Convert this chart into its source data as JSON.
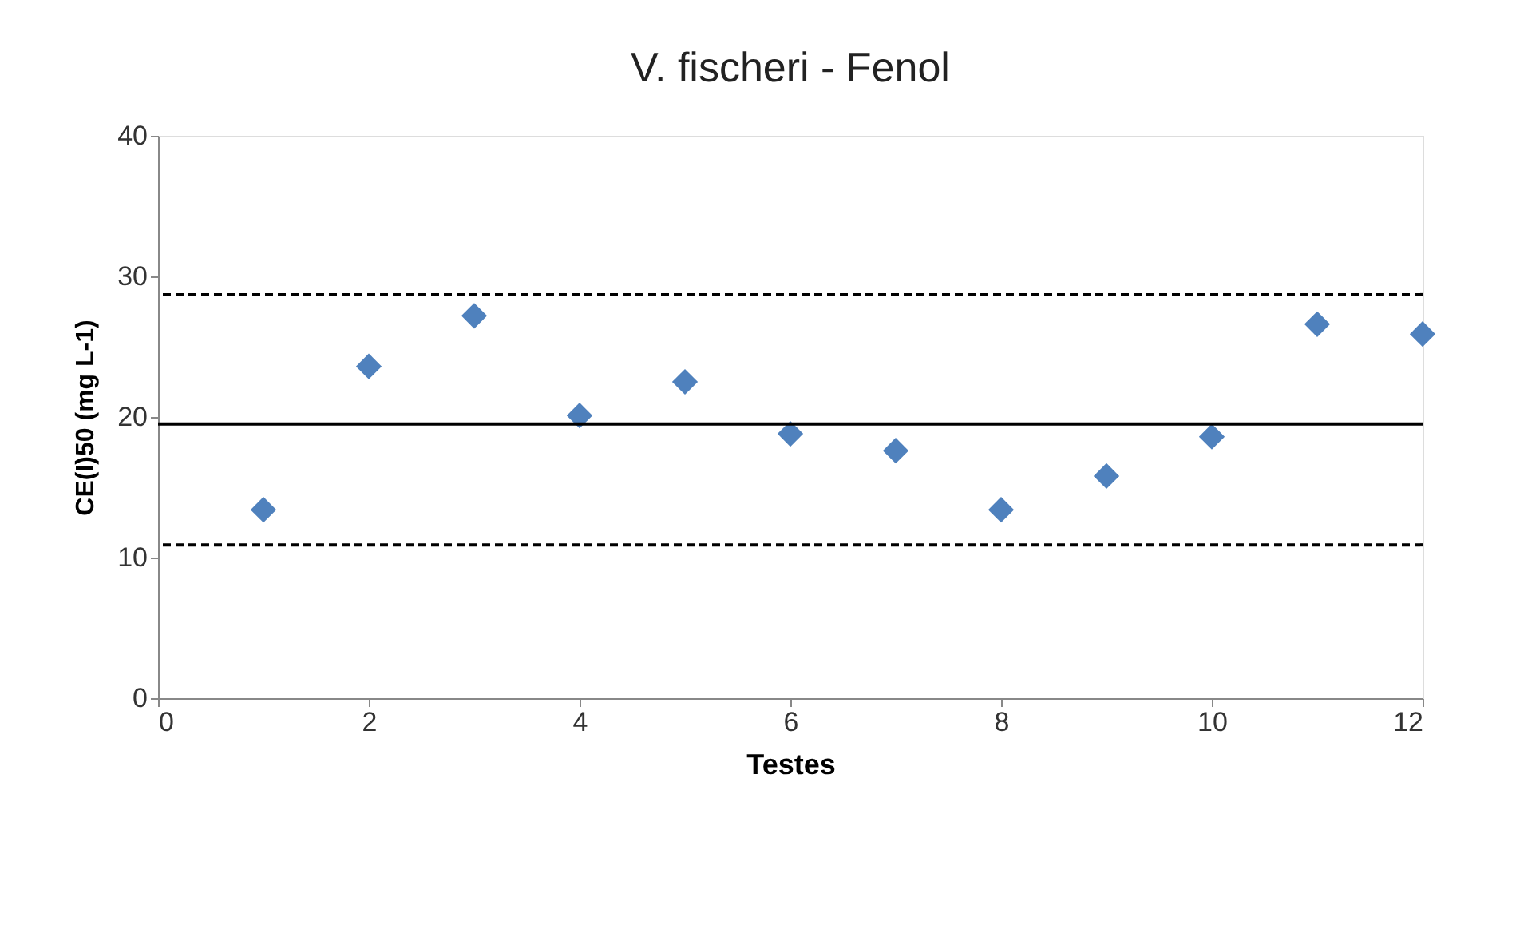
{
  "chart_data": {
    "type": "scatter",
    "title": "V. fischeri - Fenol",
    "xlabel": "Testes",
    "ylabel": "CE(I)50 (mg L-1)",
    "x": [
      1,
      2,
      3,
      4,
      5,
      6,
      7,
      8,
      9,
      10,
      11,
      12
    ],
    "series": [
      {
        "color": "#4f81bd",
        "values": [
          13.4,
          23.6,
          27.2,
          20.1,
          22.5,
          18.8,
          17.6,
          13.4,
          15.8,
          18.6,
          26.6,
          25.9
        ]
      }
    ],
    "xlim": [
      0,
      12
    ],
    "xticks": [
      0,
      2,
      4,
      6,
      8,
      10,
      12
    ],
    "ylim": [
      0,
      40
    ],
    "yticks": [
      0,
      10,
      20,
      30,
      40
    ],
    "ref_lines": [
      {
        "axis": "y",
        "value": 19.5,
        "color": "#000000",
        "line_style": "solid"
      },
      {
        "axis": "y",
        "value": 28.7,
        "color": "#000000",
        "line_style": "dashed"
      },
      {
        "axis": "y",
        "value": 10.9,
        "color": "#000000",
        "line_style": "dashed"
      }
    ],
    "grid": false,
    "marker": "diamond"
  }
}
